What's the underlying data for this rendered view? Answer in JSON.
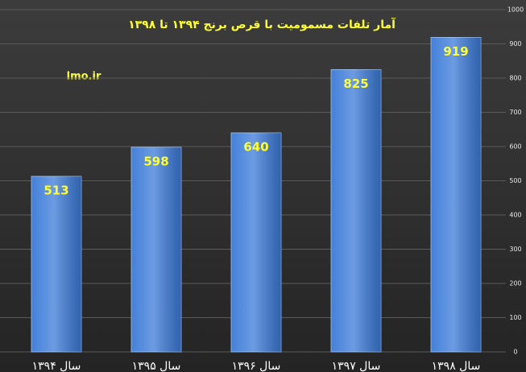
{
  "chart_data": {
    "type": "bar",
    "title": "آمار تلفات مسمومیت با قرص برنج ۱۳۹۴ تا ۱۳۹۸",
    "annotation": "lmo.ir",
    "categories": [
      "سال ۱۳۹۴",
      "سال ۱۳۹۵",
      "سال ۱۳۹۶",
      "سال ۱۳۹۷",
      "سال ۱۳۹۸"
    ],
    "values": [
      513,
      598,
      640,
      825,
      919
    ],
    "color": "#3b7ad8",
    "ylim": [
      0,
      1000
    ],
    "yticks": [
      0,
      100,
      200,
      300,
      400,
      500,
      600,
      700,
      800,
      900,
      1000
    ],
    "grid": true
  }
}
